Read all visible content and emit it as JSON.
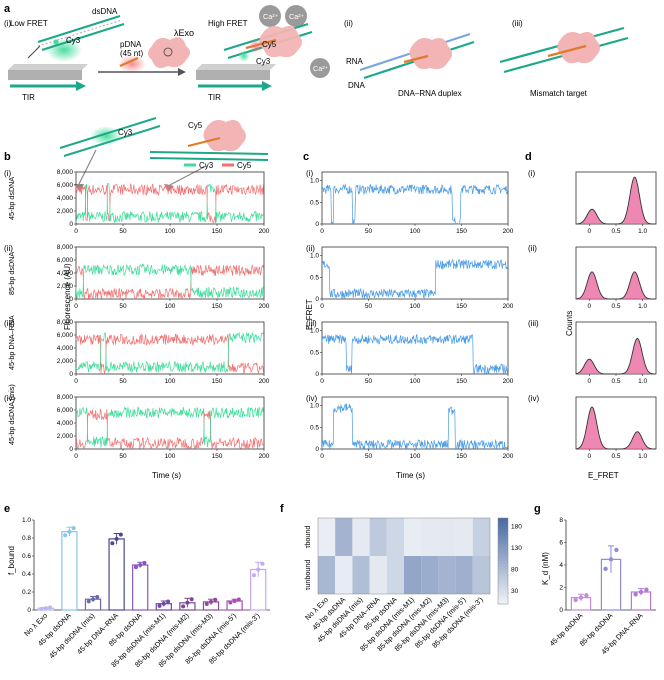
{
  "panel_labels": {
    "a": "a",
    "b": "b",
    "c": "c",
    "d": "d",
    "e": "e",
    "f": "f",
    "g": "g"
  },
  "schematic": {
    "sub_i": "(i)",
    "sub_ii": "(ii)",
    "sub_iii": "(iii)",
    "low_fret": "Low FRET",
    "high_fret": "High FRET",
    "dsdna": "dsDNA",
    "pdna_1": "pDNA",
    "pdna_2": "(45 nt)",
    "lambda_exo": "λExo",
    "cy3": "Cy3",
    "cy5": "Cy5",
    "ca2": "Ca²⁺",
    "tir": "TIR",
    "rna": "RNA",
    "dna": "DNA",
    "duplex_label": "DNA–RNA duplex",
    "mismatch_label": "Mismatch target"
  },
  "colors": {
    "cy3": "#3fdc9a",
    "cy5": "#f07070",
    "fret": "#4b9be6",
    "kde_fill": "#e8609a",
    "bar_i": "#b8b8ee",
    "heat_lo": "#ffffff",
    "heat_hi": "#0d3f87",
    "teal": "#1ea889",
    "protein": "#f2b4b4",
    "orange": "#e07a2c"
  },
  "rows": [
    {
      "sub": "(i)",
      "ylabel": "45-bp dsDNA"
    },
    {
      "sub": "(ii)",
      "ylabel": "85-bp dsDNA"
    },
    {
      "sub": "(iii)",
      "ylabel": "45-bp DNA–RNA"
    },
    {
      "sub": "(iv)",
      "ylabel": "45-bp dsDNA (mis)"
    }
  ],
  "panel_b": {
    "legend": [
      "Cy3",
      "Cy5"
    ],
    "yticks": [
      "0",
      "2,000",
      "4,000",
      "6,000",
      "8,000"
    ],
    "xticks": [
      "0",
      "50",
      "100",
      "150",
      "200"
    ],
    "ylabel": "Fluorescence (AU)",
    "xlabel": "Time (s)"
  },
  "panel_c": {
    "yticks": [
      "0",
      "0.5",
      "1.0"
    ],
    "xticks": [
      "0",
      "50",
      "100",
      "150",
      "200"
    ],
    "ylabel": "E_FRET",
    "xlabel": "Time (s)"
  },
  "panel_d": {
    "xticks": [
      "0",
      "0.5",
      "1.0"
    ],
    "ylabel": "Counts",
    "xlabel": "E_FRET"
  },
  "chart_data": [
    {
      "type": "bar",
      "panel": "e",
      "ylabel": "f_bound",
      "ylim": [
        0,
        1
      ],
      "yticks": [
        "0",
        "0.2",
        "0.4",
        "0.6",
        "0.8",
        "1.0"
      ],
      "categories": [
        "No λ Exo",
        "45-bp dsDNA",
        "45-bp dsDNA (mis)",
        "45-bp DNA–RNA",
        "85-bp dsDNA",
        "85-bp dsDNA (mis-M1)",
        "85-bp dsDNA (mis-M2)",
        "85-bp dsDNA (mis-M3)",
        "85-bp dsDNA (mis-5')",
        "85-bp dsDNA (mis-3')"
      ],
      "values": [
        0.02,
        0.87,
        0.12,
        0.79,
        0.5,
        0.07,
        0.08,
        0.09,
        0.1,
        0.45
      ],
      "errors": [
        0.01,
        0.05,
        0.03,
        0.06,
        0.03,
        0.03,
        0.05,
        0.03,
        0.02,
        0.08
      ],
      "colors": [
        "#b8b8ee",
        "#86c4ec",
        "#6a6aaa",
        "#4a4a8c",
        "#8a55c0",
        "#6f4a9e",
        "#7a4a8e",
        "#8e4a98",
        "#a84cb2",
        "#c8a8ee"
      ]
    },
    {
      "type": "heatmap",
      "panel": "f",
      "rows": [
        "τbound",
        "τunbound"
      ],
      "columns": [
        "No λ Exo",
        "45-bp dsDNA",
        "45-bp dsDNA (mis)",
        "45-bp DNA–RNA",
        "85-bp dsDNA",
        "85-bp dsDNA (mis-M1)",
        "85-bp dsDNA (mis-M2)",
        "85-bp dsDNA (mis-M3)",
        "85-bp dsDNA (mis-5')",
        "85-bp dsDNA (mis-3')"
      ],
      "values": [
        [
          12,
          95,
          18,
          65,
          45,
          14,
          18,
          20,
          18,
          55
        ],
        [
          90,
          15,
          80,
          20,
          45,
          115,
          105,
          95,
          100,
          70
        ]
      ],
      "colorbar_ticks": [
        "30",
        "80",
        "130",
        "180"
      ],
      "range": [
        0,
        200
      ]
    },
    {
      "type": "bar",
      "panel": "g",
      "ylabel": "K_d (nM)",
      "ylim": [
        0,
        8
      ],
      "yticks": [
        "0",
        "2",
        "4",
        "6",
        "8"
      ],
      "categories": [
        "45-bp dsDNA",
        "85-bp dsDNA",
        "45-bp DNA–RNA"
      ],
      "values": [
        1.1,
        4.5,
        1.6
      ],
      "errors": [
        0.3,
        1.2,
        0.3
      ],
      "colors": [
        "#c38ed6",
        "#8e8ed8",
        "#b27ad0"
      ]
    },
    {
      "type": "line",
      "panel": "b",
      "x": [
        0,
        200
      ],
      "series": [
        {
          "name": "Cy3",
          "state_changes": [
            [
              0,
              "h"
            ],
            [
              10,
              "l"
            ],
            [
              33,
              "h"
            ],
            [
              40,
              "l"
            ],
            [
              67,
              "h"
            ],
            [
              72,
              "l"
            ],
            [
              123,
              "h"
            ],
            [
              127,
              "l"
            ],
            [
              141,
              "h"
            ],
            [
              149,
              "l"
            ],
            [
              153,
              "h"
            ],
            [
              156,
              "l"
            ],
            [
              165,
              "h"
            ],
            [
              168,
              "l"
            ]
          ]
        },
        {
          "name": "Cy5"
        }
      ]
    },
    {
      "type": "line",
      "panel": "c",
      "xlim": [
        0,
        200
      ],
      "ylim": [
        0,
        1.2
      ],
      "series": [
        {
          "row": "(i)",
          "segments": [
            [
              0,
              10,
              0.8
            ],
            [
              10,
              12,
              0.05
            ],
            [
              12,
              33,
              0.8
            ],
            [
              33,
              36,
              0.05
            ],
            [
              36,
              140,
              0.8
            ],
            [
              140,
              149,
              0.05
            ],
            [
              149,
              200,
              0.8
            ]
          ]
        },
        {
          "row": "(ii)",
          "segments": [
            [
              0,
              8,
              0.8
            ],
            [
              8,
              122,
              0.12
            ],
            [
              122,
              200,
              0.8
            ]
          ]
        },
        {
          "row": "(iii)",
          "segments": [
            [
              0,
              26,
              0.8
            ],
            [
              26,
              32,
              0.1
            ],
            [
              32,
              162,
              0.8
            ],
            [
              162,
              200,
              0.12
            ]
          ]
        },
        {
          "row": "(iv)",
          "segments": [
            [
              0,
              12,
              0.1
            ],
            [
              12,
              33,
              0.95
            ],
            [
              33,
              136,
              0.1
            ],
            [
              136,
              143,
              0.9
            ],
            [
              143,
              200,
              0.1
            ]
          ]
        }
      ]
    },
    {
      "type": "area",
      "panel": "d",
      "xlim": [
        -0.25,
        1.25
      ],
      "series": [
        {
          "row": "(i)",
          "peaks": [
            [
              0.05,
              0.3
            ],
            [
              0.85,
              0.95
            ]
          ]
        },
        {
          "row": "(ii)",
          "peaks": [
            [
              0.05,
              0.55
            ],
            [
              0.85,
              0.55
            ]
          ]
        },
        {
          "row": "(iii)",
          "peaks": [
            [
              0.0,
              0.3
            ],
            [
              0.9,
              0.72
            ]
          ]
        },
        {
          "row": "(iv)",
          "peaks": [
            [
              0.05,
              0.85
            ],
            [
              0.9,
              0.35
            ]
          ]
        }
      ]
    }
  ]
}
